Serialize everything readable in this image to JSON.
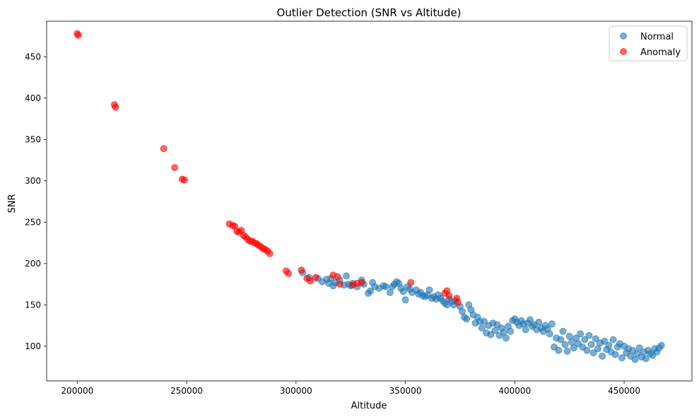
{
  "chart_data": {
    "type": "scatter",
    "title": "Outlier Detection (SNR vs Altitude)",
    "xlabel": "Altitude",
    "ylabel": "SNR",
    "xlim": [
      186000,
      481000
    ],
    "ylim": [
      58,
      493
    ],
    "xticks": [
      200000,
      250000,
      300000,
      350000,
      400000,
      450000
    ],
    "yticks": [
      100,
      150,
      200,
      250,
      300,
      350,
      400,
      450
    ],
    "xtick_labels": [
      "200000",
      "250000",
      "300000",
      "350000",
      "400000",
      "450000"
    ],
    "ytick_labels": [
      "100",
      "150",
      "200",
      "250",
      "300",
      "350",
      "400",
      "450"
    ],
    "grid": false,
    "legend_position": "top-right",
    "series": [
      {
        "name": "Normal",
        "color": "#1f77b4",
        "opacity": 0.6,
        "points": [
          [
            303000,
            189
          ],
          [
            306000,
            183
          ],
          [
            310000,
            182
          ],
          [
            312000,
            178
          ],
          [
            314000,
            181
          ],
          [
            315000,
            176
          ],
          [
            316000,
            182
          ],
          [
            317000,
            173
          ],
          [
            318000,
            177
          ],
          [
            320000,
            180
          ],
          [
            322000,
            174
          ],
          [
            323000,
            185
          ],
          [
            324000,
            175
          ],
          [
            325000,
            173
          ],
          [
            326000,
            176
          ],
          [
            328000,
            172
          ],
          [
            330000,
            180
          ],
          [
            331000,
            175
          ],
          [
            333000,
            164
          ],
          [
            334000,
            167
          ],
          [
            335000,
            177
          ],
          [
            336000,
            172
          ],
          [
            338000,
            170
          ],
          [
            340000,
            173
          ],
          [
            341000,
            172
          ],
          [
            343000,
            165
          ],
          [
            344000,
            172
          ],
          [
            345000,
            175
          ],
          [
            346000,
            178
          ],
          [
            347000,
            176
          ],
          [
            348000,
            170
          ],
          [
            349000,
            166
          ],
          [
            350000,
            156
          ],
          [
            351000,
            172
          ],
          [
            352000,
            169
          ],
          [
            353000,
            165
          ],
          [
            355000,
            168
          ],
          [
            356000,
            163
          ],
          [
            357000,
            165
          ],
          [
            358000,
            161
          ],
          [
            359000,
            160
          ],
          [
            360000,
            162
          ],
          [
            361000,
            168
          ],
          [
            362000,
            158
          ],
          [
            363000,
            160
          ],
          [
            364000,
            157
          ],
          [
            365000,
            162
          ],
          [
            366000,
            158
          ],
          [
            367000,
            155
          ],
          [
            368000,
            152
          ],
          [
            369000,
            150
          ],
          [
            370000,
            157
          ],
          [
            371000,
            154
          ],
          [
            372000,
            150
          ],
          [
            373000,
            155
          ],
          [
            375000,
            148
          ],
          [
            376000,
            142
          ],
          [
            377000,
            135
          ],
          [
            378000,
            133
          ],
          [
            379000,
            150
          ],
          [
            380000,
            144
          ],
          [
            381000,
            138
          ],
          [
            382000,
            128
          ],
          [
            383000,
            135
          ],
          [
            384000,
            130
          ],
          [
            385000,
            122
          ],
          [
            386000,
            130
          ],
          [
            387000,
            116
          ],
          [
            388000,
            125
          ],
          [
            389000,
            114
          ],
          [
            390000,
            128
          ],
          [
            391000,
            119
          ],
          [
            392000,
            126
          ],
          [
            393000,
            113
          ],
          [
            394000,
            122
          ],
          [
            395000,
            117
          ],
          [
            396000,
            110
          ],
          [
            397000,
            124
          ],
          [
            398000,
            118
          ],
          [
            399000,
            131
          ],
          [
            400000,
            133
          ],
          [
            401000,
            129
          ],
          [
            402000,
            125
          ],
          [
            403000,
            131
          ],
          [
            404000,
            127
          ],
          [
            405000,
            120
          ],
          [
            406000,
            128
          ],
          [
            407000,
            132
          ],
          [
            408000,
            124
          ],
          [
            409000,
            126
          ],
          [
            410000,
            120
          ],
          [
            411000,
            129
          ],
          [
            412000,
            122
          ],
          [
            413000,
            118
          ],
          [
            414000,
            125
          ],
          [
            415000,
            121
          ],
          [
            416000,
            115
          ],
          [
            417000,
            127
          ],
          [
            418000,
            99
          ],
          [
            419000,
            110
          ],
          [
            420000,
            95
          ],
          [
            421000,
            108
          ],
          [
            422000,
            118
          ],
          [
            423000,
            102
          ],
          [
            424000,
            94
          ],
          [
            425000,
            112
          ],
          [
            426000,
            105
          ],
          [
            427000,
            98
          ],
          [
            428000,
            110
          ],
          [
            429000,
            103
          ],
          [
            430000,
            115
          ],
          [
            431000,
            99
          ],
          [
            432000,
            108
          ],
          [
            433000,
            95
          ],
          [
            434000,
            113
          ],
          [
            435000,
            102
          ],
          [
            436000,
            92
          ],
          [
            437000,
            109
          ],
          [
            438000,
            97
          ],
          [
            439000,
            104
          ],
          [
            440000,
            88
          ],
          [
            441000,
            106
          ],
          [
            442000,
            96
          ],
          [
            443000,
            101
          ],
          [
            444000,
            93
          ],
          [
            445000,
            108
          ],
          [
            446000,
            90
          ],
          [
            447000,
            99
          ],
          [
            448000,
            103
          ],
          [
            449000,
            86
          ],
          [
            450000,
            100
          ],
          [
            451000,
            92
          ],
          [
            452000,
            97
          ],
          [
            453000,
            88
          ],
          [
            454000,
            95
          ],
          [
            455000,
            84
          ],
          [
            456000,
            91
          ],
          [
            457000,
            98
          ],
          [
            458000,
            87
          ],
          [
            459000,
            93
          ],
          [
            460000,
            85
          ],
          [
            461000,
            95
          ],
          [
            462000,
            91
          ],
          [
            463000,
            89
          ],
          [
            464000,
            97
          ],
          [
            465000,
            93
          ],
          [
            466000,
            98
          ],
          [
            467000,
            101
          ]
        ]
      },
      {
        "name": "Anomaly",
        "color": "#ff0000",
        "opacity": 0.6,
        "points": [
          [
            200000,
            478
          ],
          [
            200500,
            476
          ],
          [
            217000,
            392
          ],
          [
            217500,
            389
          ],
          [
            239500,
            339
          ],
          [
            244500,
            316
          ],
          [
            248000,
            302
          ],
          [
            249000,
            301
          ],
          [
            269500,
            248
          ],
          [
            271000,
            246
          ],
          [
            272000,
            245
          ],
          [
            273000,
            239
          ],
          [
            274000,
            238
          ],
          [
            275000,
            240
          ],
          [
            276000,
            234
          ],
          [
            277000,
            232
          ],
          [
            278000,
            229
          ],
          [
            279000,
            227
          ],
          [
            280000,
            227
          ],
          [
            281000,
            225
          ],
          [
            282000,
            224
          ],
          [
            283000,
            222
          ],
          [
            284000,
            220
          ],
          [
            285000,
            218
          ],
          [
            286000,
            217
          ],
          [
            287000,
            215
          ],
          [
            288000,
            212
          ],
          [
            295500,
            191
          ],
          [
            296500,
            188
          ],
          [
            302500,
            192
          ],
          [
            305000,
            182
          ],
          [
            306500,
            179
          ],
          [
            309000,
            183
          ],
          [
            317000,
            186
          ],
          [
            319000,
            184
          ],
          [
            320000,
            175
          ],
          [
            326000,
            174
          ],
          [
            328000,
            176
          ],
          [
            330000,
            177
          ],
          [
            352500,
            177
          ],
          [
            368000,
            164
          ],
          [
            369000,
            167
          ],
          [
            370000,
            161
          ],
          [
            373500,
            158
          ],
          [
            374000,
            153
          ]
        ]
      }
    ]
  }
}
